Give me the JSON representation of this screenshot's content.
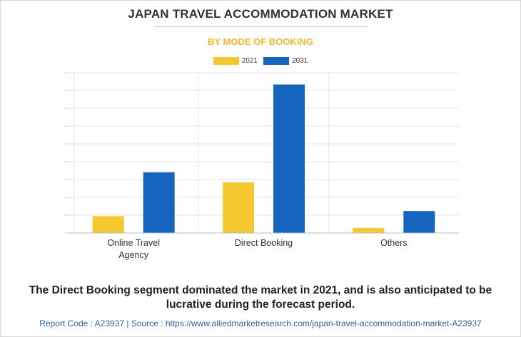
{
  "title": "JAPAN TRAVEL ACCOMMODATION MARKET",
  "subtitle": "BY MODE OF BOOKING",
  "footnote": "The Direct Booking segment dominated the market in 2021, and is also anticipated to be lucrative during the forecast period.",
  "source": "Report Code : A23937  |  Source : https://www.alliedmarketresearch.com/japan-travel-accommodation-market-A23937",
  "colors": {
    "series_2021": "#f5c830",
    "series_2031": "#1565c0",
    "subtitle": "#f5b82e"
  },
  "chart_data": {
    "type": "bar",
    "categories": [
      "Online Travel\nAgency",
      "Direct Booking",
      "Others"
    ],
    "series": [
      {
        "name": "2021",
        "values": [
          1.0,
          3.0,
          0.3
        ]
      },
      {
        "name": "2031",
        "values": [
          3.6,
          8.8,
          1.3
        ]
      }
    ],
    "ylim": [
      0,
      9.5
    ],
    "grid": true,
    "legend": "top-center",
    "ytick_labels_shown": false
  }
}
